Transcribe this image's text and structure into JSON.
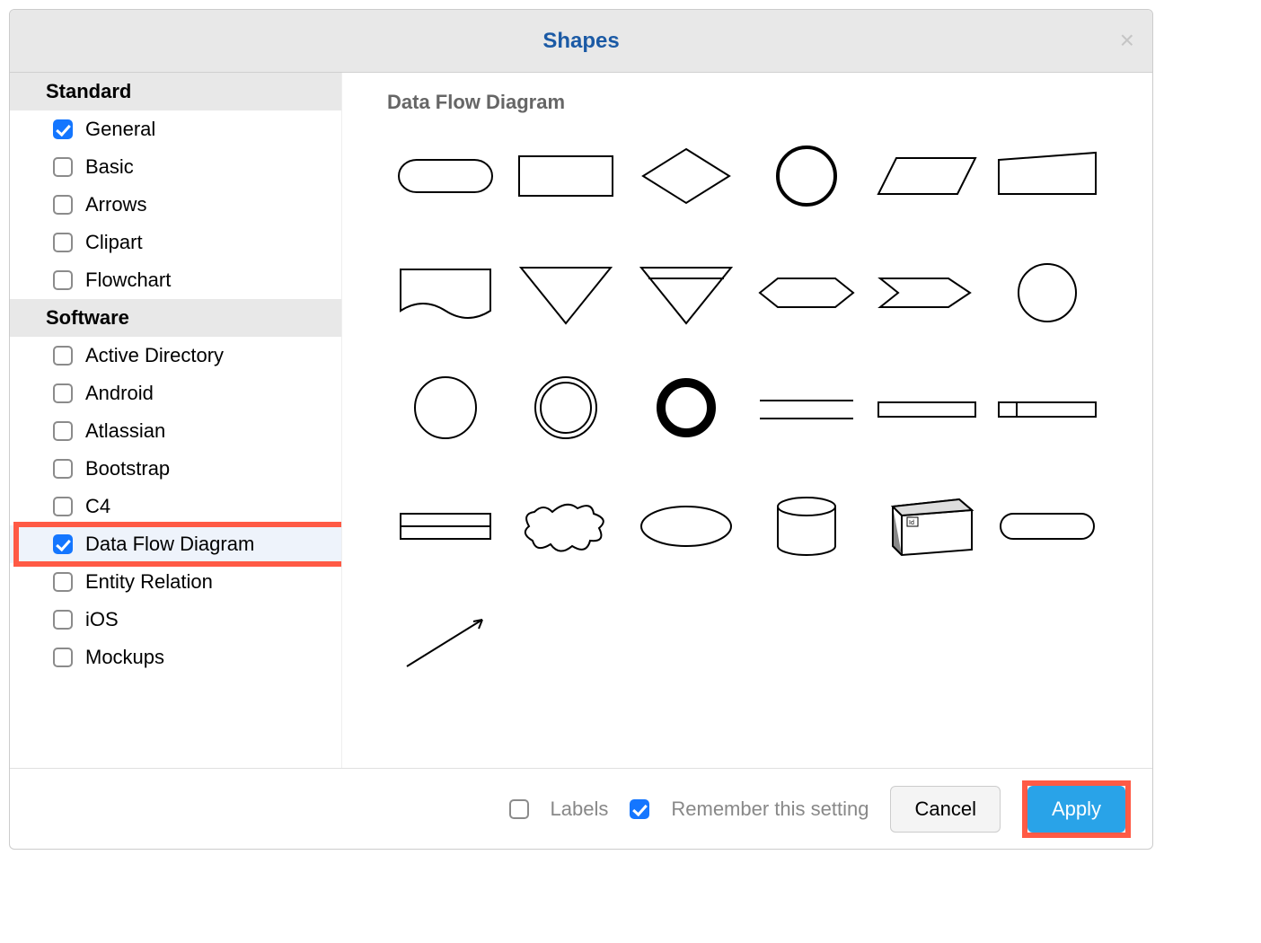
{
  "dialog": {
    "title": "Shapes"
  },
  "sidebar": {
    "categories": [
      {
        "header": "Standard"
      },
      {
        "label": "General",
        "checked": true
      },
      {
        "label": "Basic",
        "checked": false
      },
      {
        "label": "Arrows",
        "checked": false
      },
      {
        "label": "Clipart",
        "checked": false
      },
      {
        "label": "Flowchart",
        "checked": false
      },
      {
        "header": "Software"
      },
      {
        "label": "Active Directory",
        "checked": false
      },
      {
        "label": "Android",
        "checked": false
      },
      {
        "label": "Atlassian",
        "checked": false
      },
      {
        "label": "Bootstrap",
        "checked": false
      },
      {
        "label": "C4",
        "checked": false
      },
      {
        "label": "Data Flow Diagram",
        "checked": true,
        "selected": true,
        "highlighted": true
      },
      {
        "label": "Entity Relation",
        "checked": false
      },
      {
        "label": "iOS",
        "checked": false
      },
      {
        "label": "Mockups",
        "checked": false
      }
    ]
  },
  "preview": {
    "title": "Data Flow Diagram",
    "shapes": [
      "rounded-rect",
      "rect",
      "diamond",
      "circle-bold",
      "parallelogram",
      "trapezoid",
      "document",
      "triangle-down",
      "triangle-down-bar",
      "hexagon",
      "hexagon-notch",
      "circle",
      "circle-thin",
      "double-circle",
      "ring-bold",
      "two-lines",
      "long-rect",
      "rect-tab",
      "rect-split",
      "cloud",
      "ellipse",
      "cylinder",
      "cube3d",
      "stadium",
      "arrow"
    ],
    "stroke_color": "#000000",
    "stroke_width": 2,
    "stroke_width_bold": 4
  },
  "footer": {
    "labels_label": "Labels",
    "labels_checked": false,
    "remember_label": "Remember this setting",
    "remember_checked": true,
    "cancel_label": "Cancel",
    "apply_label": "Apply",
    "apply_highlighted": true
  },
  "colors": {
    "highlight": "#ff5a45",
    "accent_button": "#29a3e8",
    "checkbox_checked": "#1476ff",
    "title_color": "#1b5aa5",
    "header_bg": "#e8e8e8",
    "selected_bg": "#eef3fb"
  }
}
